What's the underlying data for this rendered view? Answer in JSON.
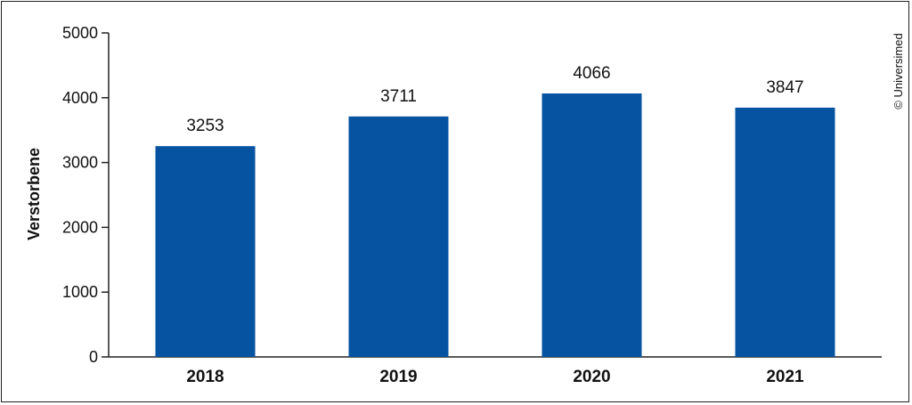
{
  "chart_data": {
    "type": "bar",
    "categories": [
      "2018",
      "2019",
      "2020",
      "2021"
    ],
    "values": [
      3253,
      3711,
      4066,
      3847
    ],
    "data_labels": [
      "3253",
      "3711",
      "4066",
      "3847"
    ],
    "title": "",
    "xlabel": "",
    "ylabel": "Verstorbene",
    "ylim": [
      0,
      5000
    ],
    "yticks": [
      0,
      1000,
      2000,
      3000,
      4000,
      5000
    ],
    "ytick_labels": [
      "0",
      "1000",
      "2000",
      "3000",
      "4000",
      "5000"
    ],
    "grid": false,
    "legend": "none",
    "bar_color": "#0553a1"
  },
  "credit": "© Universimed"
}
